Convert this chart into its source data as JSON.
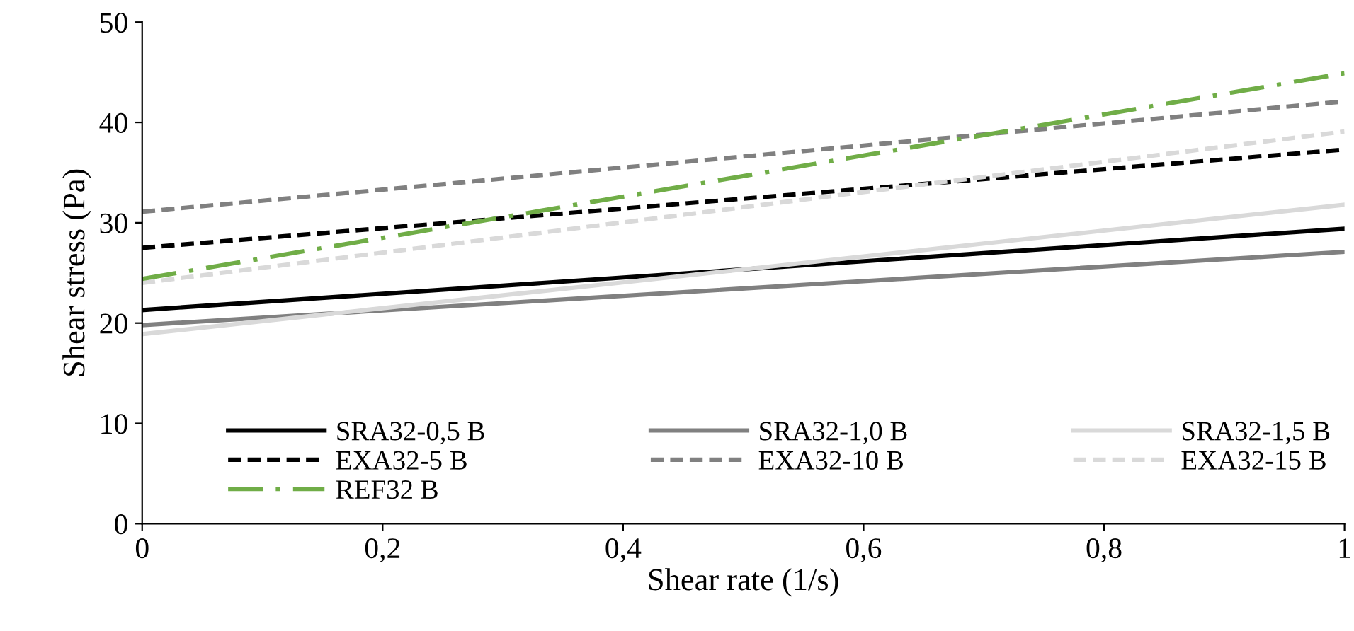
{
  "chart_data": {
    "type": "line",
    "xlabel": "Shear rate (1/s)",
    "ylabel": "Shear stress (Pa)",
    "x": [
      0,
      1
    ],
    "series": [
      {
        "name": "SRA32-0,5 B",
        "color": "#000000",
        "line_style": "solid",
        "values": [
          21.3,
          29.4
        ]
      },
      {
        "name": "SRA32-1,0 B",
        "color": "#808080",
        "line_style": "solid",
        "values": [
          19.8,
          27.1
        ]
      },
      {
        "name": "SRA32-1,5 B",
        "color": "#d9d9d9",
        "line_style": "solid",
        "values": [
          18.9,
          31.8
        ]
      },
      {
        "name": "EXA32-5 B",
        "color": "#000000",
        "line_style": "dashed",
        "values": [
          27.5,
          37.3
        ]
      },
      {
        "name": "EXA32-10 B",
        "color": "#808080",
        "line_style": "dashed",
        "values": [
          31.1,
          42.1
        ]
      },
      {
        "name": "EXA32-15 B",
        "color": "#d9d9d9",
        "line_style": "dashed",
        "values": [
          24.0,
          39.1
        ]
      },
      {
        "name": "REF32 B",
        "color": "#70ad47",
        "line_style": "dashdot",
        "values": [
          24.4,
          44.9
        ]
      }
    ],
    "xlim": [
      0,
      1
    ],
    "xticks": [
      0,
      {
        "value": 0.2,
        "label": "0,2"
      },
      {
        "value": 0.4,
        "label": "0,4"
      },
      {
        "value": 0.6,
        "label": "0,6"
      },
      {
        "value": 0.8,
        "label": "0,8"
      },
      1
    ],
    "ylim": [
      0,
      50
    ],
    "yticks": [
      0,
      10,
      20,
      30,
      40,
      50
    ],
    "grid": false,
    "legend": "bottom",
    "marker": "none"
  }
}
